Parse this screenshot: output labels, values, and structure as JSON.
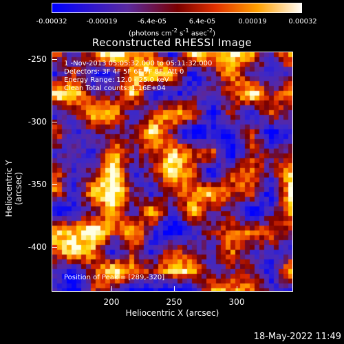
{
  "colorbar": {
    "ticks": [
      "-0.00032",
      "-0.00019",
      "-6.4e-05",
      "6.4e-05",
      "0.00019",
      "0.00032"
    ],
    "units_html": "(photons cm<sup>-2</sup> s<sup>-1</sup> asec<sup>-2</sup>)",
    "colors": [
      "#0000ff",
      "#5a2aa0",
      "#b00000",
      "#ff6a00",
      "#ffd000",
      "#ffffff"
    ]
  },
  "title": "Reconstructed RHESSI Image",
  "annotations": {
    "time": "1 -Nov-2013 05:05:32.000 to 05:11:32.000",
    "detectors": "Detectors: 3F 4F 5F 6F 7F 8F, Att 0",
    "energy": "Energy Range: 12.0 - 25.0 keV",
    "clean": "Clean     Total counts: 1.16E+04",
    "peak": "Position of Peak = [289,-320]"
  },
  "axes": {
    "xlabel": "Heliocentric X (arcsec)",
    "ylabel": "Heliocentric Y (arcsec)",
    "xticks": [
      "200",
      "250",
      "300"
    ],
    "yticks": [
      "-250",
      "-300",
      "-350",
      "-400"
    ]
  },
  "footer": {
    "date": "18-May-2022 11:49"
  }
}
